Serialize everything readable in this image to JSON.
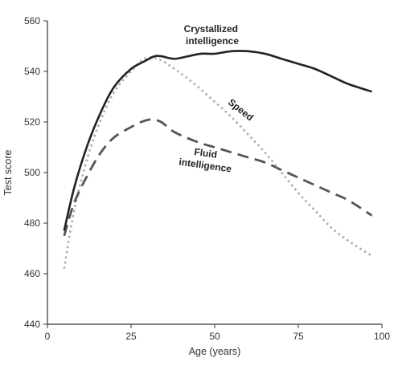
{
  "chart_data": {
    "type": "line",
    "title": "",
    "xlabel": "Age (years)",
    "ylabel": "Test score",
    "xlim": [
      0,
      100
    ],
    "ylim": [
      440,
      560
    ],
    "xticks": [
      0,
      25,
      50,
      75,
      100
    ],
    "yticks": [
      440,
      460,
      480,
      500,
      520,
      540,
      560
    ],
    "xtick_labels": [
      "0",
      "25",
      "50",
      "75",
      "100"
    ],
    "ytick_labels": [
      "440",
      "460",
      "480",
      "500",
      "520",
      "540",
      "560"
    ],
    "grid": false,
    "legend": "none (series labeled directly on chart)",
    "series": [
      {
        "key": "crystallized",
        "name_lines": [
          "Crystallized",
          "intelligence"
        ],
        "style": "solid",
        "color": "#222222",
        "points": [
          [
            5,
            477
          ],
          [
            8,
            494
          ],
          [
            12,
            511
          ],
          [
            16,
            524
          ],
          [
            20,
            534
          ],
          [
            25,
            541
          ],
          [
            29,
            544
          ],
          [
            32,
            546
          ],
          [
            34,
            546
          ],
          [
            38,
            545
          ],
          [
            42,
            546
          ],
          [
            46,
            547
          ],
          [
            50,
            547
          ],
          [
            55,
            548
          ],
          [
            60,
            548
          ],
          [
            65,
            547
          ],
          [
            70,
            545
          ],
          [
            75,
            543
          ],
          [
            80,
            541
          ],
          [
            85,
            538
          ],
          [
            90,
            535
          ],
          [
            97,
            532
          ]
        ]
      },
      {
        "key": "speed",
        "name_lines": [
          "Speed"
        ],
        "style": "dotted",
        "color": "#aaaaaa",
        "points": [
          [
            5,
            462
          ],
          [
            8,
            485
          ],
          [
            12,
            506
          ],
          [
            16,
            521
          ],
          [
            20,
            532
          ],
          [
            25,
            540
          ],
          [
            29,
            545
          ],
          [
            33,
            545
          ],
          [
            38,
            541
          ],
          [
            44,
            535
          ],
          [
            50,
            528
          ],
          [
            55,
            522
          ],
          [
            60,
            515
          ],
          [
            65,
            508
          ],
          [
            70,
            500
          ],
          [
            75,
            492
          ],
          [
            80,
            485
          ],
          [
            85,
            478
          ],
          [
            90,
            473
          ],
          [
            97,
            467
          ]
        ]
      },
      {
        "key": "fluid",
        "name_lines": [
          "Fluid",
          "intelligence"
        ],
        "style": "dashed",
        "color": "#555555",
        "points": [
          [
            5,
            475
          ],
          [
            8,
            488
          ],
          [
            12,
            499
          ],
          [
            16,
            508
          ],
          [
            20,
            514
          ],
          [
            25,
            518
          ],
          [
            28,
            520
          ],
          [
            31,
            521
          ],
          [
            34,
            520
          ],
          [
            38,
            516
          ],
          [
            45,
            512
          ],
          [
            50,
            510
          ],
          [
            55,
            508
          ],
          [
            60,
            506
          ],
          [
            65,
            504
          ],
          [
            70,
            501
          ],
          [
            75,
            498
          ],
          [
            80,
            495
          ],
          [
            85,
            492
          ],
          [
            90,
            489
          ],
          [
            97,
            483
          ]
        ]
      }
    ]
  }
}
